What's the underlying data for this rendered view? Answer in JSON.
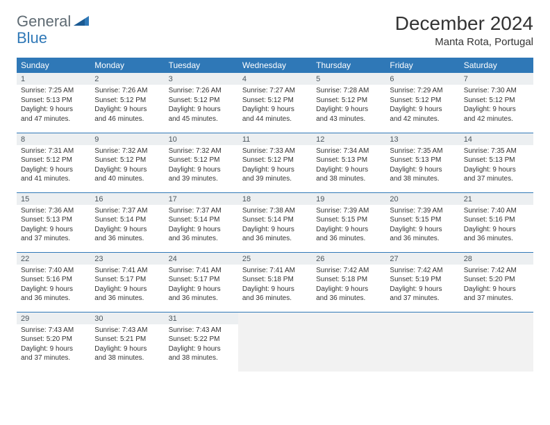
{
  "brand": {
    "word1": "General",
    "word2": "Blue"
  },
  "month_title": "December 2024",
  "location": "Manta Rota, Portugal",
  "colors": {
    "header_bg": "#2f78b7",
    "header_fg": "#ffffff",
    "daynum_bg": "#eceff1",
    "daynum_fg": "#4a555c",
    "border": "#2f78b7",
    "page_bg": "#ffffff",
    "text": "#333333",
    "empty_bg": "#f2f2f2"
  },
  "weekdays": [
    "Sunday",
    "Monday",
    "Tuesday",
    "Wednesday",
    "Thursday",
    "Friday",
    "Saturday"
  ],
  "fonts": {
    "body_pt": 10,
    "daynum_pt": 11,
    "weekday_pt": 12,
    "title_pt": 28,
    "location_pt": 15
  },
  "weeks": [
    [
      {
        "n": "1",
        "sr": "Sunrise: 7:25 AM",
        "ss": "Sunset: 5:13 PM",
        "dl": "Daylight: 9 hours and 47 minutes."
      },
      {
        "n": "2",
        "sr": "Sunrise: 7:26 AM",
        "ss": "Sunset: 5:12 PM",
        "dl": "Daylight: 9 hours and 46 minutes."
      },
      {
        "n": "3",
        "sr": "Sunrise: 7:26 AM",
        "ss": "Sunset: 5:12 PM",
        "dl": "Daylight: 9 hours and 45 minutes."
      },
      {
        "n": "4",
        "sr": "Sunrise: 7:27 AM",
        "ss": "Sunset: 5:12 PM",
        "dl": "Daylight: 9 hours and 44 minutes."
      },
      {
        "n": "5",
        "sr": "Sunrise: 7:28 AM",
        "ss": "Sunset: 5:12 PM",
        "dl": "Daylight: 9 hours and 43 minutes."
      },
      {
        "n": "6",
        "sr": "Sunrise: 7:29 AM",
        "ss": "Sunset: 5:12 PM",
        "dl": "Daylight: 9 hours and 42 minutes."
      },
      {
        "n": "7",
        "sr": "Sunrise: 7:30 AM",
        "ss": "Sunset: 5:12 PM",
        "dl": "Daylight: 9 hours and 42 minutes."
      }
    ],
    [
      {
        "n": "8",
        "sr": "Sunrise: 7:31 AM",
        "ss": "Sunset: 5:12 PM",
        "dl": "Daylight: 9 hours and 41 minutes."
      },
      {
        "n": "9",
        "sr": "Sunrise: 7:32 AM",
        "ss": "Sunset: 5:12 PM",
        "dl": "Daylight: 9 hours and 40 minutes."
      },
      {
        "n": "10",
        "sr": "Sunrise: 7:32 AM",
        "ss": "Sunset: 5:12 PM",
        "dl": "Daylight: 9 hours and 39 minutes."
      },
      {
        "n": "11",
        "sr": "Sunrise: 7:33 AM",
        "ss": "Sunset: 5:12 PM",
        "dl": "Daylight: 9 hours and 39 minutes."
      },
      {
        "n": "12",
        "sr": "Sunrise: 7:34 AM",
        "ss": "Sunset: 5:13 PM",
        "dl": "Daylight: 9 hours and 38 minutes."
      },
      {
        "n": "13",
        "sr": "Sunrise: 7:35 AM",
        "ss": "Sunset: 5:13 PM",
        "dl": "Daylight: 9 hours and 38 minutes."
      },
      {
        "n": "14",
        "sr": "Sunrise: 7:35 AM",
        "ss": "Sunset: 5:13 PM",
        "dl": "Daylight: 9 hours and 37 minutes."
      }
    ],
    [
      {
        "n": "15",
        "sr": "Sunrise: 7:36 AM",
        "ss": "Sunset: 5:13 PM",
        "dl": "Daylight: 9 hours and 37 minutes."
      },
      {
        "n": "16",
        "sr": "Sunrise: 7:37 AM",
        "ss": "Sunset: 5:14 PM",
        "dl": "Daylight: 9 hours and 36 minutes."
      },
      {
        "n": "17",
        "sr": "Sunrise: 7:37 AM",
        "ss": "Sunset: 5:14 PM",
        "dl": "Daylight: 9 hours and 36 minutes."
      },
      {
        "n": "18",
        "sr": "Sunrise: 7:38 AM",
        "ss": "Sunset: 5:14 PM",
        "dl": "Daylight: 9 hours and 36 minutes."
      },
      {
        "n": "19",
        "sr": "Sunrise: 7:39 AM",
        "ss": "Sunset: 5:15 PM",
        "dl": "Daylight: 9 hours and 36 minutes."
      },
      {
        "n": "20",
        "sr": "Sunrise: 7:39 AM",
        "ss": "Sunset: 5:15 PM",
        "dl": "Daylight: 9 hours and 36 minutes."
      },
      {
        "n": "21",
        "sr": "Sunrise: 7:40 AM",
        "ss": "Sunset: 5:16 PM",
        "dl": "Daylight: 9 hours and 36 minutes."
      }
    ],
    [
      {
        "n": "22",
        "sr": "Sunrise: 7:40 AM",
        "ss": "Sunset: 5:16 PM",
        "dl": "Daylight: 9 hours and 36 minutes."
      },
      {
        "n": "23",
        "sr": "Sunrise: 7:41 AM",
        "ss": "Sunset: 5:17 PM",
        "dl": "Daylight: 9 hours and 36 minutes."
      },
      {
        "n": "24",
        "sr": "Sunrise: 7:41 AM",
        "ss": "Sunset: 5:17 PM",
        "dl": "Daylight: 9 hours and 36 minutes."
      },
      {
        "n": "25",
        "sr": "Sunrise: 7:41 AM",
        "ss": "Sunset: 5:18 PM",
        "dl": "Daylight: 9 hours and 36 minutes."
      },
      {
        "n": "26",
        "sr": "Sunrise: 7:42 AM",
        "ss": "Sunset: 5:18 PM",
        "dl": "Daylight: 9 hours and 36 minutes."
      },
      {
        "n": "27",
        "sr": "Sunrise: 7:42 AM",
        "ss": "Sunset: 5:19 PM",
        "dl": "Daylight: 9 hours and 37 minutes."
      },
      {
        "n": "28",
        "sr": "Sunrise: 7:42 AM",
        "ss": "Sunset: 5:20 PM",
        "dl": "Daylight: 9 hours and 37 minutes."
      }
    ],
    [
      {
        "n": "29",
        "sr": "Sunrise: 7:43 AM",
        "ss": "Sunset: 5:20 PM",
        "dl": "Daylight: 9 hours and 37 minutes."
      },
      {
        "n": "30",
        "sr": "Sunrise: 7:43 AM",
        "ss": "Sunset: 5:21 PM",
        "dl": "Daylight: 9 hours and 38 minutes."
      },
      {
        "n": "31",
        "sr": "Sunrise: 7:43 AM",
        "ss": "Sunset: 5:22 PM",
        "dl": "Daylight: 9 hours and 38 minutes."
      },
      null,
      null,
      null,
      null
    ]
  ]
}
